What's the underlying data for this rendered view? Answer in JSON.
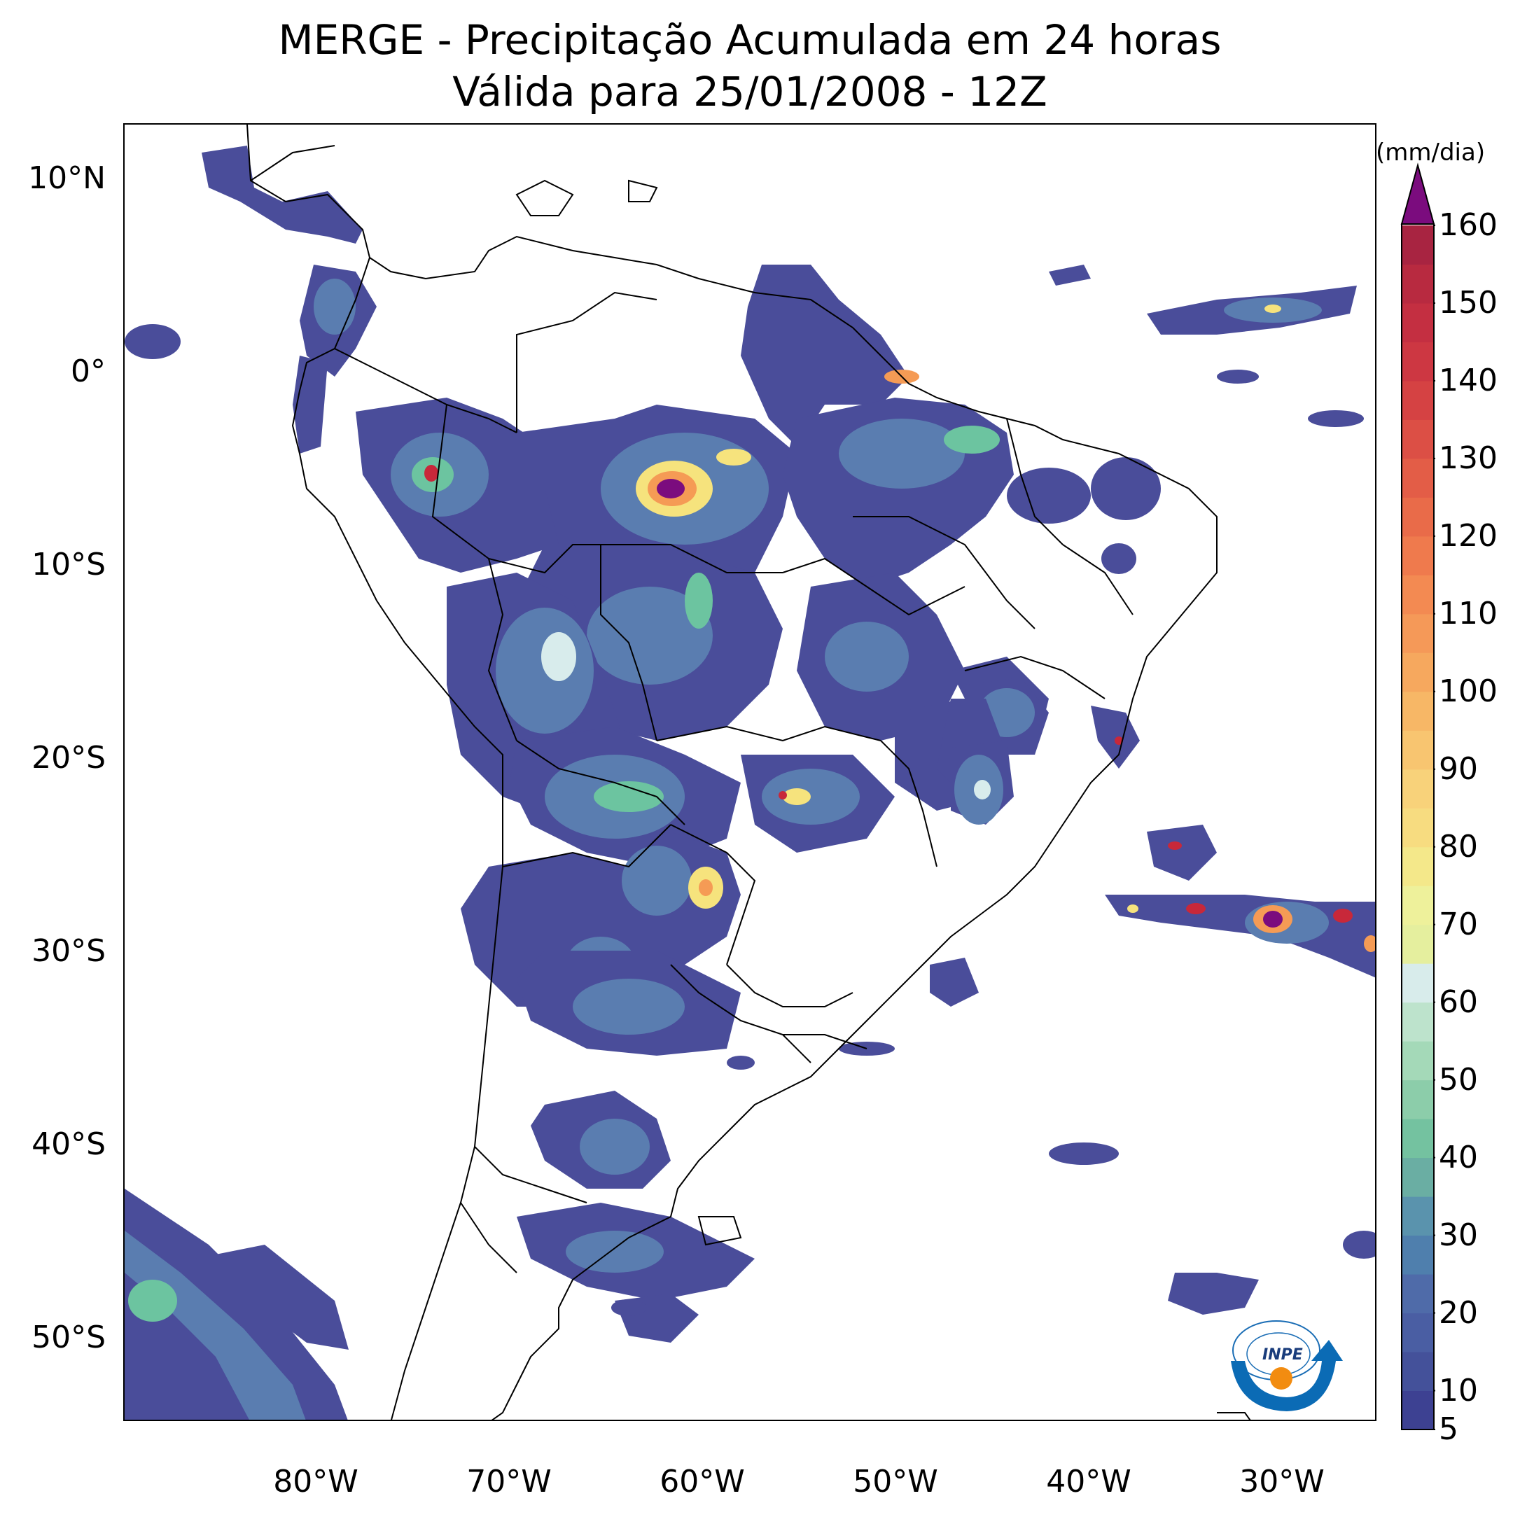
{
  "title": {
    "line1": "MERGE - Precipitação Acumulada em 24 horas",
    "line2": "Válida para 25/01/2008 - 12Z"
  },
  "map": {
    "lat_ticks": [
      "10°N",
      "0°",
      "10°S",
      "20°S",
      "30°S",
      "40°S",
      "50°S"
    ],
    "lon_ticks": [
      "80°W",
      "70°W",
      "60°W",
      "50°W",
      "40°W",
      "30°W"
    ],
    "extent": {
      "lon_min": -90,
      "lon_max": -25,
      "lat_min": -56,
      "lat_max": 13
    }
  },
  "colorbar": {
    "units": "(mm/dia)",
    "labels": [
      "5",
      "10",
      "20",
      "30",
      "40",
      "50",
      "60",
      "70",
      "80",
      "90",
      "100",
      "110",
      "120",
      "130",
      "140",
      "150",
      "160"
    ],
    "min": 5,
    "max": 160,
    "extend": "max"
  },
  "logo": {
    "text": "INPE"
  },
  "colors": {
    "low": "#4a4d9a",
    "mid_low": "#5a7db0",
    "mid": "#6cc4a0",
    "light": "#d8ecec",
    "yellow": "#f6e37d",
    "orange": "#f59b55",
    "red": "#c8283a",
    "max": "#7b0c7e"
  }
}
